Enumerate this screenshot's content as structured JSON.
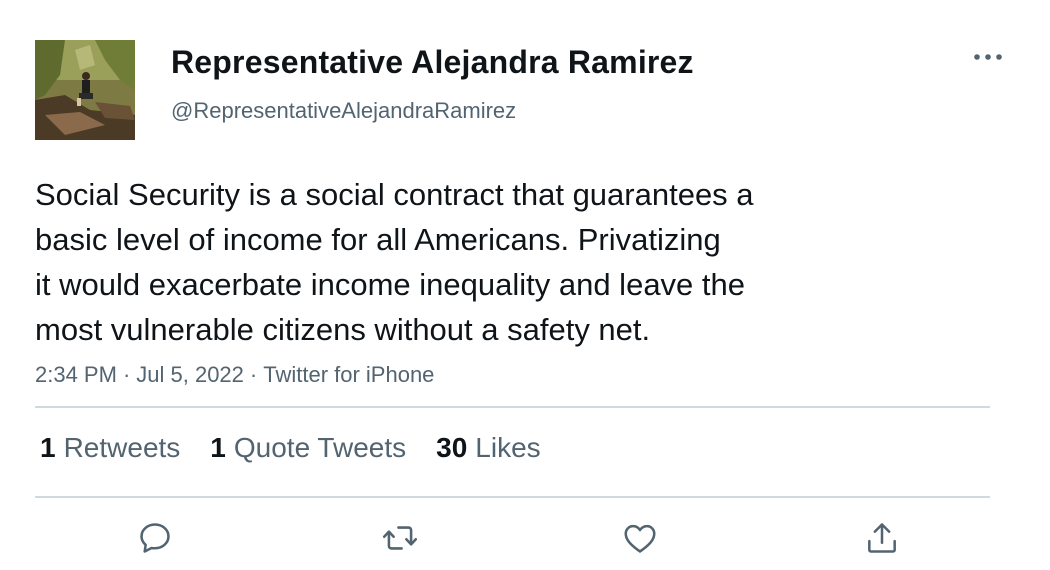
{
  "header": {
    "display_name": "Representative Alejandra Ramirez",
    "handle": "@RepresentativeAlejandraRamirez",
    "more_icon": "more-horizontal-icon"
  },
  "tweet": {
    "text_lines": [
      "Social Security is a social contract that guarantees a",
      "basic level of income for all Americans. Privatizing",
      "it would exacerbate income inequality and leave the",
      "most vulnerable citizens without a safety net."
    ],
    "time": "2:34 PM",
    "date": "Jul 5, 2022",
    "source": "Twitter for iPhone",
    "separator": "·"
  },
  "stats": {
    "retweets": {
      "count": "1",
      "label": "Retweets"
    },
    "quotes": {
      "count": "1",
      "label": "Quote Tweets"
    },
    "likes": {
      "count": "30",
      "label": "Likes"
    }
  },
  "actions": {
    "reply_icon": "reply-icon",
    "retweet_icon": "retweet-icon",
    "like_icon": "heart-icon",
    "share_icon": "share-icon"
  },
  "colors": {
    "text": "#0f1419",
    "secondary": "#536471",
    "divider": "#cfd9de"
  }
}
